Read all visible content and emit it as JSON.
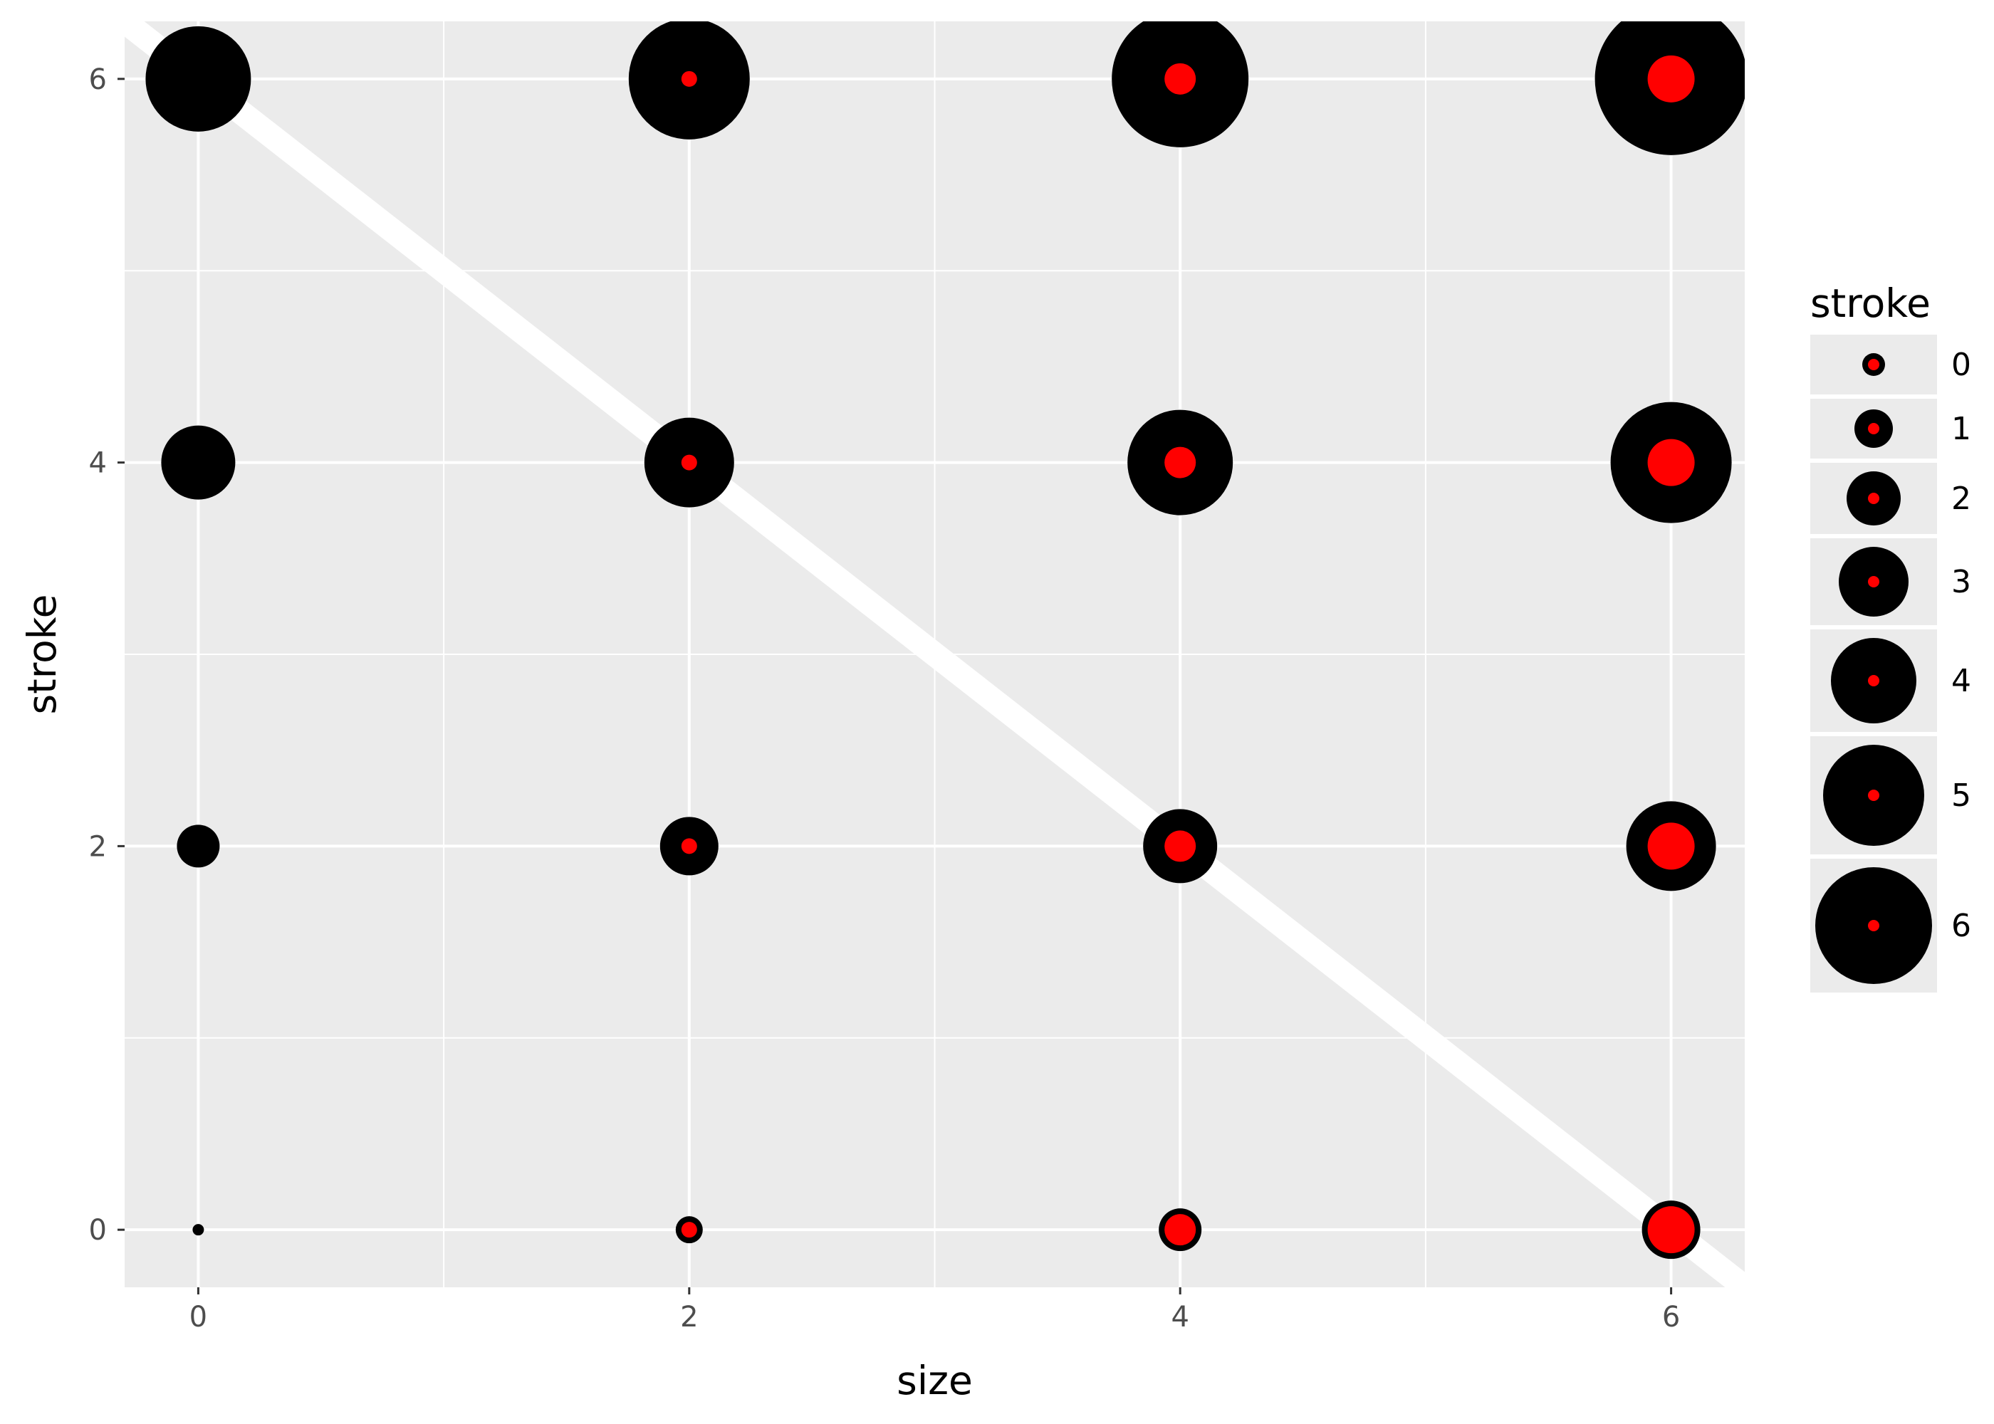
{
  "chart_data": {
    "type": "scatter",
    "xlabel": "size",
    "ylabel": "stroke",
    "xlim": [
      -0.3,
      6.3
    ],
    "ylim": [
      -0.3,
      6.3
    ],
    "x_ticks": [
      0,
      2,
      4,
      6
    ],
    "y_ticks": [
      0,
      2,
      4,
      6
    ],
    "x_tick_labels": [
      "0",
      "2",
      "4",
      "6"
    ],
    "y_tick_labels": [
      "0",
      "2",
      "4",
      "6"
    ],
    "grid": true,
    "points": [
      {
        "size": 0,
        "stroke": 0
      },
      {
        "size": 2,
        "stroke": 0
      },
      {
        "size": 4,
        "stroke": 0
      },
      {
        "size": 6,
        "stroke": 0
      },
      {
        "size": 0,
        "stroke": 2
      },
      {
        "size": 2,
        "stroke": 2
      },
      {
        "size": 4,
        "stroke": 2
      },
      {
        "size": 6,
        "stroke": 2
      },
      {
        "size": 0,
        "stroke": 4
      },
      {
        "size": 2,
        "stroke": 4
      },
      {
        "size": 4,
        "stroke": 4
      },
      {
        "size": 6,
        "stroke": 4
      },
      {
        "size": 0,
        "stroke": 6
      },
      {
        "size": 2,
        "stroke": 6
      },
      {
        "size": 4,
        "stroke": 6
      },
      {
        "size": 6,
        "stroke": 6
      }
    ],
    "reference_line": {
      "x": [
        -0.3,
        6.3
      ],
      "y": [
        6.3,
        -0.3
      ],
      "color": "#ffffff"
    },
    "point_fill": "#ff0000",
    "point_stroke": "#000000",
    "legend": {
      "title": "stroke",
      "placement": "right",
      "values": [
        0,
        1,
        2,
        3,
        4,
        5,
        6
      ],
      "labels": [
        "0",
        "1",
        "2",
        "3",
        "4",
        "5",
        "6"
      ]
    },
    "colors": {
      "panel_background": "#ebebeb",
      "grid_major": "#ffffff",
      "grid_minor": "#ffffff"
    }
  }
}
